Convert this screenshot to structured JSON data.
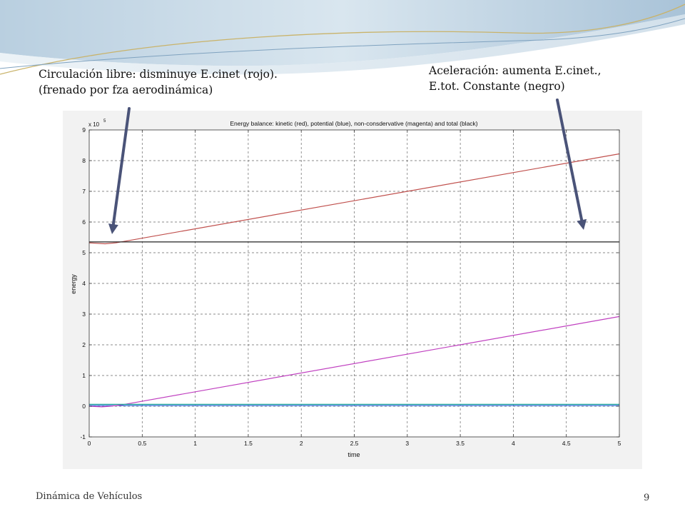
{
  "annotations": {
    "left": {
      "line1": "Circulación libre: disminuye E.cinet (rojo).",
      "line2": "(frenado por fza aerodinámica)"
    },
    "right": {
      "line1": "Aceleración: aumenta E.cinet.,",
      "line2": "E.tot. Constante (negro)"
    }
  },
  "footer": {
    "title": "Dinámica de Vehículos",
    "page_number": "9"
  },
  "colors": {
    "kinetic": "#c0504d",
    "potential": "#2f6bd8",
    "nonconservative": "#c040c0",
    "total": "#222222",
    "arrow": "#4a5378",
    "teal": "#1aa39a"
  },
  "chart_data": {
    "type": "line",
    "title": "Energy balance: kinetic (red), potential (blue), non-consdervative (magenta) and total (black)",
    "xlabel": "time",
    "ylabel": "energy",
    "y_multiplier": "x 10",
    "y_exponent": "5",
    "xlim": [
      0,
      5
    ],
    "ylim": [
      -1,
      9
    ],
    "grid": true,
    "x_ticks": [
      0,
      0.5,
      1,
      1.5,
      2,
      2.5,
      3,
      3.5,
      4,
      4.5,
      5
    ],
    "x_tick_labels": [
      "0",
      "0.5",
      "1",
      "1.5",
      "2",
      "2.5",
      "3",
      "3.5",
      "4",
      "4.5",
      "5"
    ],
    "y_ticks": [
      -1,
      0,
      1,
      2,
      3,
      4,
      5,
      6,
      7,
      8,
      9
    ],
    "y_tick_labels": [
      "-1",
      "0",
      "1",
      "2",
      "3",
      "4",
      "5",
      "6",
      "7",
      "8",
      "9"
    ],
    "series": [
      {
        "name": "kinetic",
        "color": "#c0504d",
        "x": [
          0,
          0.15,
          0.25,
          5
        ],
        "y": [
          5.32,
          5.29,
          5.32,
          8.22
        ]
      },
      {
        "name": "potential",
        "color": "#2f6bd8",
        "x": [
          0,
          5
        ],
        "y": [
          0.02,
          0.02
        ]
      },
      {
        "name": "non-consdervative",
        "color": "#c040c0",
        "x": [
          0,
          0.12,
          0.2,
          0.3,
          5
        ],
        "y": [
          0.0,
          -0.02,
          0.0,
          0.04,
          2.92
        ]
      },
      {
        "name": "total",
        "color": "#222222",
        "x": [
          0,
          5
        ],
        "y": [
          5.35,
          5.35
        ]
      },
      {
        "name": "",
        "color": "#1aa39a",
        "x": [
          0,
          5
        ],
        "y": [
          0.06,
          0.06
        ]
      }
    ]
  }
}
